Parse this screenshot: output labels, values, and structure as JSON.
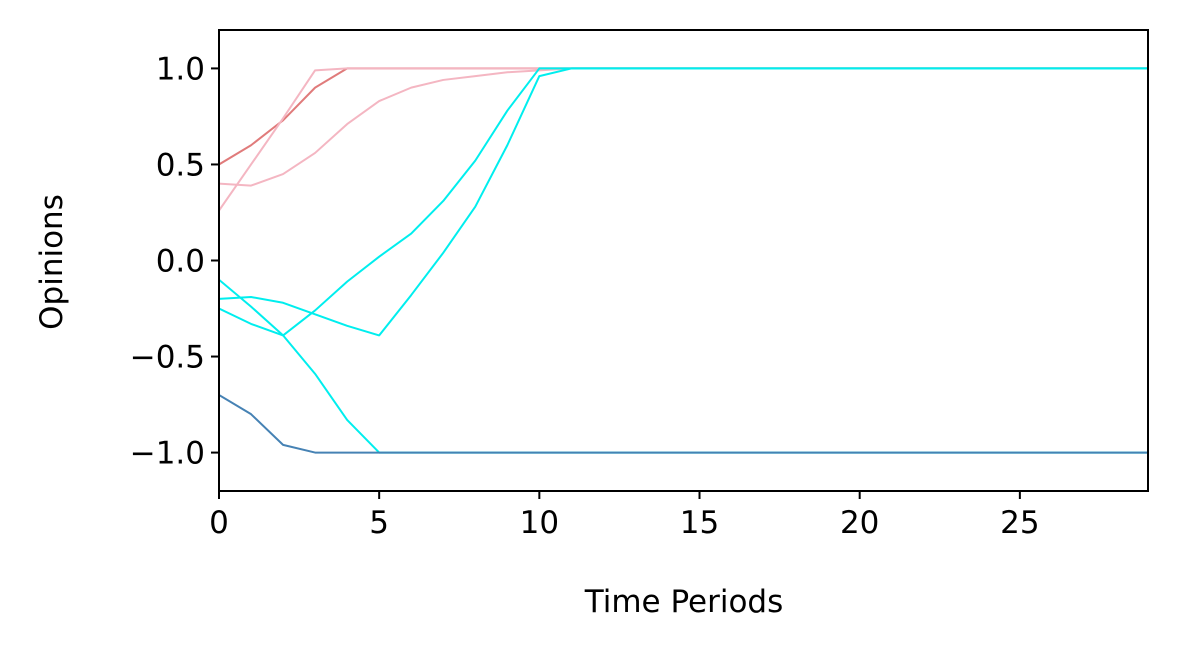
{
  "chart_data": {
    "type": "line",
    "title": "",
    "xlabel": "Time Periods",
    "ylabel": "Opinions",
    "xlim": [
      0,
      29
    ],
    "ylim": [
      -1.2,
      1.2
    ],
    "xticks": [
      0,
      5,
      10,
      15,
      20,
      25
    ],
    "yticks": [
      1.0,
      0.5,
      0.0,
      -0.5,
      -1.0
    ],
    "ytick_labels": [
      "1.0",
      "0.5",
      "0.0",
      "−0.5",
      "−1.0"
    ],
    "grid": false,
    "series": [
      {
        "color": "#e07b7b",
        "x": [
          0,
          1,
          2,
          3,
          4,
          5,
          29
        ],
        "y": [
          0.5,
          0.6,
          0.73,
          0.9,
          1.0,
          1.0,
          1.0
        ]
      },
      {
        "color": "#f4b6c2",
        "x": [
          0,
          1,
          2,
          3,
          4,
          5,
          29
        ],
        "y": [
          0.26,
          0.5,
          0.74,
          0.99,
          1.0,
          1.0,
          1.0
        ]
      },
      {
        "color": "#f4b6c2",
        "x": [
          0,
          1,
          2,
          3,
          4,
          5,
          6,
          7,
          8,
          9,
          10,
          11,
          29
        ],
        "y": [
          0.4,
          0.39,
          0.45,
          0.56,
          0.71,
          0.83,
          0.9,
          0.94,
          0.96,
          0.98,
          0.99,
          1.0,
          1.0
        ]
      },
      {
        "color": "#00eeee",
        "x": [
          0,
          1,
          2,
          3,
          4,
          5,
          6,
          7,
          8,
          9,
          10,
          11,
          29
        ],
        "y": [
          -0.2,
          -0.19,
          -0.22,
          -0.28,
          -0.34,
          -0.39,
          -0.18,
          0.04,
          0.28,
          0.6,
          0.96,
          1.0,
          1.0
        ]
      },
      {
        "color": "#00eeee",
        "x": [
          0,
          1,
          2,
          3,
          4,
          5,
          6,
          7,
          8,
          9,
          10,
          11,
          29
        ],
        "y": [
          -0.25,
          -0.33,
          -0.39,
          -0.26,
          -0.11,
          0.02,
          0.14,
          0.31,
          0.52,
          0.78,
          1.0,
          1.0,
          1.0
        ]
      },
      {
        "color": "#00eeee",
        "x": [
          0,
          1,
          2,
          3,
          4,
          5,
          29
        ],
        "y": [
          -0.1,
          -0.24,
          -0.39,
          -0.59,
          -0.83,
          -1.0,
          -1.0
        ]
      },
      {
        "color": "#4682b4",
        "x": [
          0,
          1,
          2,
          3,
          4,
          5,
          29
        ],
        "y": [
          -0.7,
          -0.8,
          -0.96,
          -1.0,
          -1.0,
          -1.0,
          -1.0
        ]
      }
    ]
  }
}
